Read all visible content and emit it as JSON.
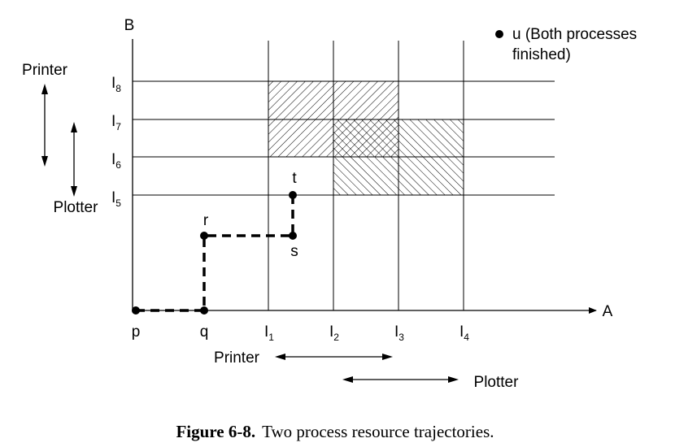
{
  "axes": {
    "x_label": "A",
    "y_label": "B",
    "x_ticks": [
      {
        "main": "p",
        "sub": ""
      },
      {
        "main": "q",
        "sub": ""
      },
      {
        "main": "I",
        "sub": "1"
      },
      {
        "main": "I",
        "sub": "2"
      },
      {
        "main": "I",
        "sub": "3"
      },
      {
        "main": "I",
        "sub": "4"
      }
    ],
    "y_ticks": [
      {
        "main": "I",
        "sub": "5"
      },
      {
        "main": "I",
        "sub": "6"
      },
      {
        "main": "I",
        "sub": "7"
      },
      {
        "main": "I",
        "sub": "8"
      }
    ]
  },
  "points": {
    "r": "r",
    "s": "s",
    "t": "t"
  },
  "legend": {
    "u_line1": "u (Both processes",
    "u_line2": "finished)"
  },
  "resources": {
    "left_printer": "Printer",
    "left_plotter": "Plotter",
    "bottom_printer": "Printer",
    "bottom_plotter": "Plotter"
  },
  "caption": {
    "label": "Figure 6-8.",
    "text": "Two process resource trajectories."
  }
}
